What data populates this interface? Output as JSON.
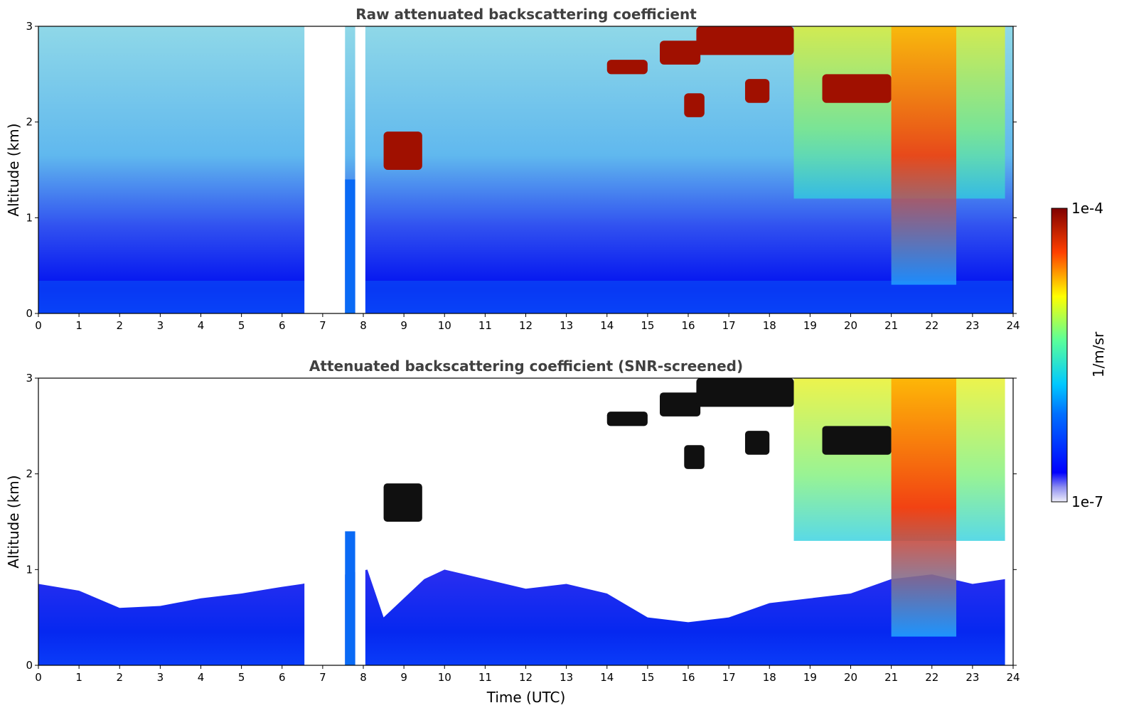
{
  "chart_data": [
    {
      "type": "heatmap",
      "title": "Raw attenuated backscattering coefficient",
      "xlabel": "",
      "ylabel": "Altitude (km)",
      "xlim": [
        0,
        24
      ],
      "ylim": [
        0,
        3
      ],
      "xticks": [
        "0",
        "1",
        "2",
        "3",
        "4",
        "5",
        "6",
        "7",
        "8",
        "9",
        "10",
        "11",
        "12",
        "13",
        "14",
        "15",
        "16",
        "17",
        "18",
        "19",
        "20",
        "21",
        "22",
        "23",
        "24"
      ],
      "yticks": [
        "0",
        "1",
        "2",
        "3"
      ],
      "data_gaps_hours": [
        [
          6.55,
          7.55
        ],
        [
          7.8,
          8.05
        ]
      ],
      "features": [
        {
          "kind": "cloud_layer",
          "x": [
            8.5,
            9.45
          ],
          "y": [
            1.5,
            1.9
          ]
        },
        {
          "kind": "cloud_layer",
          "x": [
            14.0,
            15.0
          ],
          "y": [
            2.5,
            2.65
          ]
        },
        {
          "kind": "cloud_layer",
          "x": [
            15.3,
            16.3
          ],
          "y": [
            2.6,
            2.85
          ]
        },
        {
          "kind": "cloud_layer",
          "x": [
            16.2,
            18.6
          ],
          "y": [
            2.7,
            3.0
          ]
        },
        {
          "kind": "cloud_layer",
          "x": [
            15.9,
            16.4
          ],
          "y": [
            2.05,
            2.3
          ]
        },
        {
          "kind": "cloud_layer",
          "x": [
            17.4,
            18.0
          ],
          "y": [
            2.2,
            2.45
          ]
        },
        {
          "kind": "cloud_layer",
          "x": [
            19.3,
            21.0
          ],
          "y": [
            2.2,
            2.5
          ]
        },
        {
          "kind": "convective_plume",
          "x": [
            21.0,
            22.6
          ],
          "y": [
            0.3,
            3.0
          ]
        }
      ]
    },
    {
      "type": "heatmap",
      "title": "Attenuated backscattering coefficient (SNR-screened)",
      "xlabel": "Time (UTC)",
      "ylabel": "Altitude (km)",
      "xlim": [
        0,
        24
      ],
      "ylim": [
        0,
        3
      ],
      "xticks": [
        "0",
        "1",
        "2",
        "3",
        "4",
        "5",
        "6",
        "7",
        "8",
        "9",
        "10",
        "11",
        "12",
        "13",
        "14",
        "15",
        "16",
        "17",
        "18",
        "19",
        "20",
        "21",
        "22",
        "23",
        "24"
      ],
      "yticks": [
        "0",
        "1",
        "2",
        "3"
      ],
      "data_gaps_hours": [
        [
          6.55,
          7.55
        ],
        [
          7.8,
          8.05
        ]
      ],
      "boundary_layer_top_km": {
        "hours": [
          0,
          1,
          2,
          3,
          4,
          5,
          6,
          6.5,
          8.1,
          8.5,
          9.5,
          10,
          11,
          12,
          13,
          14,
          15,
          16,
          17,
          18,
          19,
          20,
          21,
          22,
          23,
          23.8
        ],
        "height": [
          0.85,
          0.78,
          0.6,
          0.62,
          0.7,
          0.75,
          0.82,
          0.85,
          1.0,
          0.5,
          0.9,
          1.0,
          0.9,
          0.8,
          0.85,
          0.75,
          0.5,
          0.45,
          0.5,
          0.65,
          0.7,
          0.75,
          0.9,
          0.95,
          0.85,
          0.9
        ]
      }
    }
  ],
  "colorbar": {
    "label": "1/m/sr",
    "max_label": "1e-4",
    "min_label": "1e-7",
    "scale": "log",
    "colormap": "jet"
  }
}
